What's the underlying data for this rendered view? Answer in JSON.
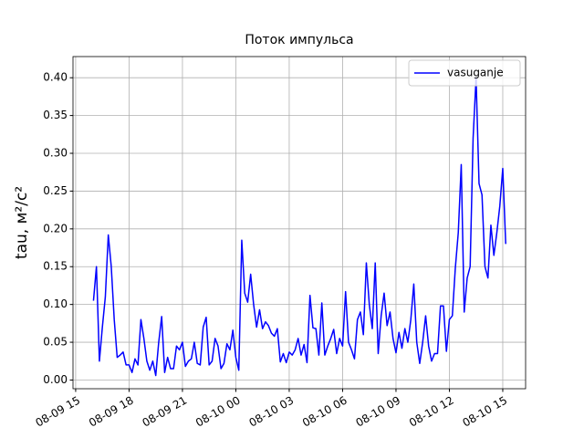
{
  "chart_data": {
    "type": "line",
    "title": "Поток импульса",
    "ylabel": "tau, м²/с²",
    "x": [
      "08-09 16:00",
      "08-09 16:10",
      "08-09 16:20",
      "08-09 16:30",
      "08-09 16:40",
      "08-09 16:50",
      "08-09 17:00",
      "08-09 17:10",
      "08-09 17:20",
      "08-09 17:30",
      "08-09 17:40",
      "08-09 17:50",
      "08-09 18:00",
      "08-09 18:10",
      "08-09 18:20",
      "08-09 18:30",
      "08-09 18:40",
      "08-09 18:50",
      "08-09 19:00",
      "08-09 19:10",
      "08-09 19:20",
      "08-09 19:30",
      "08-09 19:40",
      "08-09 19:50",
      "08-09 20:00",
      "08-09 20:10",
      "08-09 20:20",
      "08-09 20:30",
      "08-09 20:40",
      "08-09 20:50",
      "08-09 21:00",
      "08-09 21:10",
      "08-09 21:20",
      "08-09 21:30",
      "08-09 21:40",
      "08-09 21:50",
      "08-09 22:00",
      "08-09 22:10",
      "08-09 22:20",
      "08-09 22:30",
      "08-09 22:40",
      "08-09 22:50",
      "08-09 23:00",
      "08-09 23:10",
      "08-09 23:20",
      "08-09 23:30",
      "08-09 23:40",
      "08-09 23:50",
      "08-10 00:00",
      "08-10 00:10",
      "08-10 00:20",
      "08-10 00:30",
      "08-10 00:40",
      "08-10 00:50",
      "08-10 01:00",
      "08-10 01:10",
      "08-10 01:20",
      "08-10 01:30",
      "08-10 01:40",
      "08-10 01:50",
      "08-10 02:00",
      "08-10 02:10",
      "08-10 02:20",
      "08-10 02:30",
      "08-10 02:40",
      "08-10 02:50",
      "08-10 03:00",
      "08-10 03:10",
      "08-10 03:20",
      "08-10 03:30",
      "08-10 03:40",
      "08-10 03:50",
      "08-10 04:00",
      "08-10 04:10",
      "08-10 04:20",
      "08-10 04:30",
      "08-10 04:40",
      "08-10 04:50",
      "08-10 05:00",
      "08-10 05:10",
      "08-10 05:20",
      "08-10 05:30",
      "08-10 05:40",
      "08-10 05:50",
      "08-10 06:00",
      "08-10 06:10",
      "08-10 06:20",
      "08-10 06:30",
      "08-10 06:40",
      "08-10 06:50",
      "08-10 07:00",
      "08-10 07:10",
      "08-10 07:20",
      "08-10 07:30",
      "08-10 07:40",
      "08-10 07:50",
      "08-10 08:00",
      "08-10 08:10",
      "08-10 08:20",
      "08-10 08:30",
      "08-10 08:40",
      "08-10 08:50",
      "08-10 09:00",
      "08-10 09:10",
      "08-10 09:20",
      "08-10 09:30",
      "08-10 09:40",
      "08-10 09:50",
      "08-10 10:00",
      "08-10 10:10",
      "08-10 10:20",
      "08-10 10:30",
      "08-10 10:40",
      "08-10 10:50",
      "08-10 11:00",
      "08-10 11:10",
      "08-10 11:20",
      "08-10 11:30",
      "08-10 11:40",
      "08-10 11:50",
      "08-10 12:00",
      "08-10 12:10",
      "08-10 12:20",
      "08-10 12:30",
      "08-10 12:40",
      "08-10 12:50",
      "08-10 13:00",
      "08-10 13:10",
      "08-10 13:20",
      "08-10 13:30",
      "08-10 13:40",
      "08-10 13:50",
      "08-10 14:00",
      "08-10 14:10",
      "08-10 14:20",
      "08-10 14:30",
      "08-10 14:40",
      "08-10 14:50",
      "08-10 15:00",
      "08-10 15:10"
    ],
    "series": [
      {
        "name": "vasuganje",
        "color": "#0000ff",
        "values": [
          0.105,
          0.15,
          0.025,
          0.07,
          0.11,
          0.192,
          0.15,
          0.08,
          0.03,
          0.033,
          0.037,
          0.02,
          0.02,
          0.01,
          0.028,
          0.02,
          0.08,
          0.055,
          0.025,
          0.013,
          0.025,
          0.006,
          0.05,
          0.084,
          0.01,
          0.03,
          0.015,
          0.015,
          0.045,
          0.04,
          0.05,
          0.018,
          0.025,
          0.028,
          0.05,
          0.022,
          0.02,
          0.07,
          0.083,
          0.02,
          0.025,
          0.055,
          0.045,
          0.015,
          0.022,
          0.048,
          0.04,
          0.066,
          0.03,
          0.013,
          0.185,
          0.115,
          0.103,
          0.14,
          0.1,
          0.07,
          0.093,
          0.068,
          0.077,
          0.072,
          0.062,
          0.058,
          0.068,
          0.024,
          0.035,
          0.023,
          0.037,
          0.033,
          0.04,
          0.055,
          0.033,
          0.047,
          0.023,
          0.112,
          0.069,
          0.068,
          0.033,
          0.102,
          0.033,
          0.045,
          0.055,
          0.067,
          0.035,
          0.055,
          0.045,
          0.117,
          0.05,
          0.04,
          0.028,
          0.08,
          0.09,
          0.06,
          0.155,
          0.1,
          0.068,
          0.155,
          0.035,
          0.085,
          0.115,
          0.072,
          0.09,
          0.055,
          0.036,
          0.063,
          0.042,
          0.068,
          0.05,
          0.08,
          0.127,
          0.05,
          0.022,
          0.05,
          0.085,
          0.045,
          0.025,
          0.035,
          0.035,
          0.098,
          0.098,
          0.038,
          0.08,
          0.085,
          0.148,
          0.195,
          0.285,
          0.09,
          0.135,
          0.15,
          0.32,
          0.4,
          0.26,
          0.245,
          0.15,
          0.135,
          0.205,
          0.165,
          0.195,
          0.23,
          0.28,
          0.18
        ]
      }
    ],
    "xlim": [
      "08-09 14:51",
      "08-10 16:17"
    ],
    "xticks": [
      {
        "value": "08-09 15:00",
        "label": "08-09 15"
      },
      {
        "value": "08-09 18:00",
        "label": "08-09 18"
      },
      {
        "value": "08-09 21:00",
        "label": "08-09 21"
      },
      {
        "value": "08-10 00:00",
        "label": "08-10 00"
      },
      {
        "value": "08-10 03:00",
        "label": "08-10 03"
      },
      {
        "value": "08-10 06:00",
        "label": "08-10 06"
      },
      {
        "value": "08-10 09:00",
        "label": "08-10 09"
      },
      {
        "value": "08-10 12:00",
        "label": "08-10 12"
      },
      {
        "value": "08-10 15:00",
        "label": "08-10 15"
      }
    ],
    "ylim": [
      -0.0115,
      0.428
    ],
    "yticks": [
      {
        "value": 0,
        "label": "0.00"
      },
      {
        "value": 0.05,
        "label": "0.05"
      },
      {
        "value": 0.1,
        "label": "0.10"
      },
      {
        "value": 0.15,
        "label": "0.15"
      },
      {
        "value": 0.2,
        "label": "0.20"
      },
      {
        "value": 0.25,
        "label": "0.25"
      },
      {
        "value": 0.3,
        "label": "0.30"
      },
      {
        "value": 0.35,
        "label": "0.35"
      },
      {
        "value": 0.4,
        "label": "0.40"
      }
    ],
    "grid": true,
    "legend": "upper right"
  }
}
